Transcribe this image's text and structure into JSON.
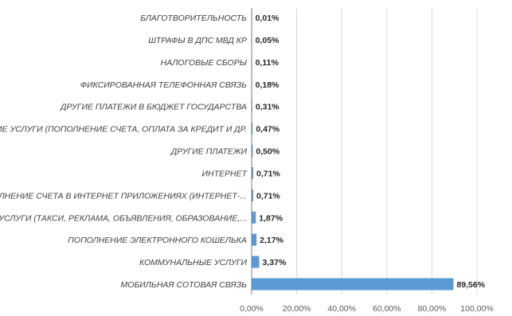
{
  "chart_data": {
    "type": "bar",
    "orientation": "horizontal",
    "categories": [
      "БЛАГОТВОРИТЕЛЬНОСТЬ",
      "ШТРАФЫ В ДПС МВД КР",
      "НАЛОГОВЫЕ СБОРЫ",
      "ФИКСИРОВАННАЯ ТЕЛЕФОННАЯ СВЯЗЬ",
      "ДРУГИЕ ПЛАТЕЖИ В БЮДЖЕТ ГОСУДАРСТВА",
      "БАНКОВСКИЕ УСЛУГИ (ПОПОЛНЕНИЕ СЧЕТА, ОПЛАТА ЗА КРЕДИТ И ДР.",
      "ДРУГИЕ ПЛАТЕЖИ",
      "ИНТЕРНЕТ",
      "ПОПОЛНЕНИЕ СЧЕТА В ИНТЕРНЕТ ПРИЛОЖЕНИЯХ (ИНТЕРНЕТ-...",
      "ОПЛАТА ЗА УСЛУГИ (ТАКСИ, РЕКЛАМА, ОБЪЯВЛЕНИЯ, ОБРАЗОВАНИЕ,...",
      "ПОПОЛНЕНИЕ ЭЛЕКТРОННОГО КОШЕЛЬКА",
      "КОММУНАЛЬНЫЕ УСЛУГИ",
      "МОБИЛЬНАЯ СОТОВАЯ СВЯЗЬ"
    ],
    "values": [
      0.01,
      0.05,
      0.11,
      0.18,
      0.31,
      0.47,
      0.5,
      0.71,
      0.71,
      1.87,
      2.17,
      3.37,
      89.56
    ],
    "value_labels": [
      "0,01%",
      "0,05%",
      "0,11%",
      "0,18%",
      "0,31%",
      "0,47%",
      "0,50%",
      "0,71%",
      "0,71%",
      "1,87%",
      "2,17%",
      "3,37%",
      "89,56%"
    ],
    "x_ticks": [
      0,
      20,
      40,
      60,
      80,
      100
    ],
    "x_tick_labels": [
      "0,00%",
      "20,00%",
      "40,00%",
      "60,00%",
      "80,00%",
      "100,00%"
    ],
    "xlim": [
      0,
      100
    ],
    "grid": true,
    "legend": "none",
    "title": "",
    "xlabel": "",
    "ylabel": "",
    "colors": {
      "bar": "#5B9BD5",
      "grid": "#D9D9D9",
      "axis": "#7F7F7F"
    }
  }
}
